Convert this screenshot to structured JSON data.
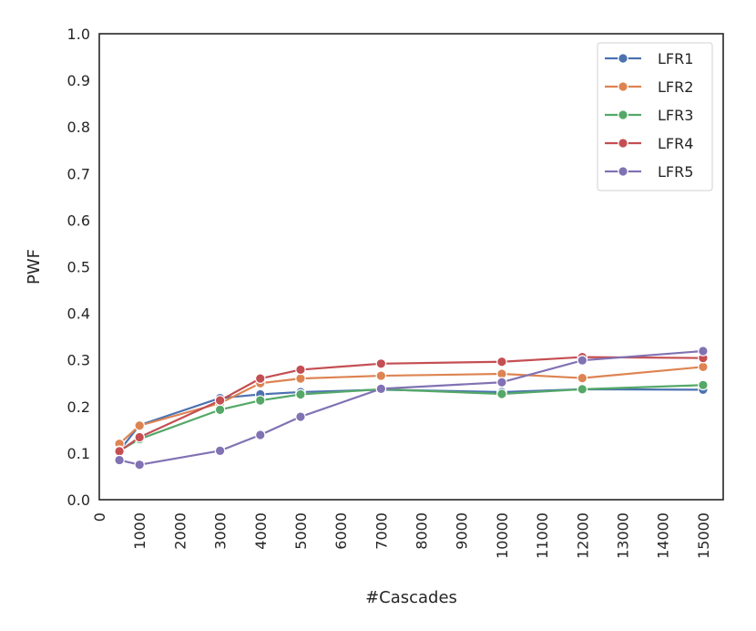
{
  "chart_data": {
    "type": "line",
    "xlabel": "#Cascades",
    "ylabel": "PWF",
    "xlim": [
      0,
      15500
    ],
    "ylim": [
      0.0,
      1.0
    ],
    "xticks": [
      0,
      1000,
      2000,
      3000,
      4000,
      5000,
      6000,
      7000,
      8000,
      9000,
      10000,
      11000,
      12000,
      13000,
      14000,
      15000
    ],
    "xtick_labels": [
      "0",
      "1000",
      "2000",
      "3000",
      "4000",
      "5000",
      "6000",
      "7000",
      "8000",
      "9000",
      "10000",
      "11000",
      "12000",
      "13000",
      "14000",
      "15000"
    ],
    "yticks": [
      0.0,
      0.1,
      0.2,
      0.3,
      0.4,
      0.5,
      0.6,
      0.7,
      0.8,
      0.9,
      1.0
    ],
    "ytick_labels": [
      "0.0",
      "0.1",
      "0.2",
      "0.3",
      "0.4",
      "0.5",
      "0.6",
      "0.7",
      "0.8",
      "0.9",
      "1.0"
    ],
    "grid": false,
    "legend_position": "top-right",
    "x": [
      500,
      1000,
      3000,
      4000,
      5000,
      7000,
      10000,
      12000,
      15000
    ],
    "series": [
      {
        "name": "LFR1",
        "color": "#4c72b0",
        "values": [
          0.105,
          0.16,
          0.218,
          0.226,
          0.231,
          0.236,
          0.231,
          0.237,
          0.236
        ]
      },
      {
        "name": "LFR2",
        "color": "#dd8452",
        "values": [
          0.12,
          0.159,
          0.207,
          0.25,
          0.26,
          0.266,
          0.27,
          0.261,
          0.285
        ]
      },
      {
        "name": "LFR3",
        "color": "#55a868",
        "values": [
          0.105,
          0.13,
          0.193,
          0.213,
          0.226,
          0.237,
          0.227,
          0.237,
          0.246
        ]
      },
      {
        "name": "LFR4",
        "color": "#c44e52",
        "values": [
          0.104,
          0.134,
          0.213,
          0.26,
          0.279,
          0.292,
          0.296,
          0.306,
          0.304
        ]
      },
      {
        "name": "LFR5",
        "color": "#8172b3",
        "values": [
          0.085,
          0.075,
          0.105,
          0.139,
          0.178,
          0.238,
          0.252,
          0.299,
          0.319
        ]
      }
    ]
  }
}
